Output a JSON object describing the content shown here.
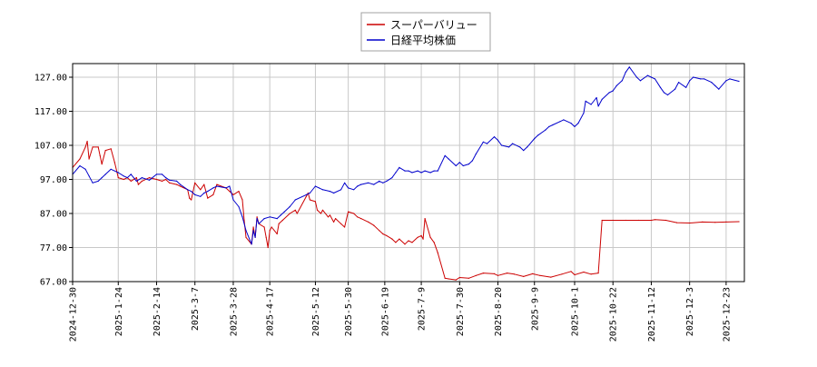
{
  "chart_data": {
    "type": "line",
    "title": "",
    "xlabel": "",
    "ylabel": "",
    "grid": true,
    "legend_position": "top-center",
    "ylim": [
      67,
      131
    ],
    "xlim": [
      "2024-12-30",
      "2026-01-02"
    ],
    "yticks": [
      67,
      77,
      87,
      97,
      107,
      117,
      127
    ],
    "ytick_labels": [
      "67.00",
      "77.00",
      "87.00",
      "97.00",
      "107.00",
      "117.00",
      "127.00"
    ],
    "xticks": [
      "2024-12-30",
      "2025-1-24",
      "2025-2-14",
      "2025-3-7",
      "2025-3-28",
      "2025-4-17",
      "2025-5-12",
      "2025-5-30",
      "2025-6-19",
      "2025-7-9",
      "2025-7-30",
      "2025-8-20",
      "2025-9-9",
      "2025-10-1",
      "2025-10-22",
      "2025-11-12",
      "2025-12-3",
      "2025-12-23"
    ],
    "series": [
      {
        "name": "スーパーバリュー",
        "color": "#cc0000",
        "points": [
          [
            "2024-12-30",
            100.5
          ],
          [
            "2025-1-3",
            103
          ],
          [
            "2025-1-6",
            106.5
          ],
          [
            "2025-1-7",
            108.2
          ],
          [
            "2025-1-8",
            103
          ],
          [
            "2025-1-10",
            106.5
          ],
          [
            "2025-1-13",
            106.5
          ],
          [
            "2025-1-14",
            104
          ],
          [
            "2025-1-15",
            101.5
          ],
          [
            "2025-1-17",
            105.5
          ],
          [
            "2025-1-20",
            106
          ],
          [
            "2025-1-22",
            102
          ],
          [
            "2025-1-24",
            97.5
          ],
          [
            "2025-1-27",
            97
          ],
          [
            "2025-1-29",
            97.5
          ],
          [
            "2025-1-31",
            96.5
          ],
          [
            "2025-2-3",
            97.5
          ],
          [
            "2025-2-4",
            95.5
          ],
          [
            "2025-2-6",
            96.5
          ],
          [
            "2025-2-10",
            97.5
          ],
          [
            "2025-2-14",
            97
          ],
          [
            "2025-2-17",
            96.5
          ],
          [
            "2025-2-19",
            97
          ],
          [
            "2025-2-21",
            96
          ],
          [
            "2025-2-25",
            95.5
          ],
          [
            "2025-2-27",
            95
          ],
          [
            "2025-3-3",
            94
          ],
          [
            "2025-3-4",
            91.5
          ],
          [
            "2025-3-5",
            91
          ],
          [
            "2025-3-7",
            96
          ],
          [
            "2025-3-10",
            94
          ],
          [
            "2025-3-12",
            95.5
          ],
          [
            "2025-3-14",
            91.5
          ],
          [
            "2025-3-17",
            92.5
          ],
          [
            "2025-3-19",
            95.5
          ],
          [
            "2025-3-24",
            94.5
          ],
          [
            "2025-3-26",
            93.5
          ],
          [
            "2025-3-28",
            92.5
          ],
          [
            "2025-3-31",
            93.5
          ],
          [
            "2025-4-2",
            91
          ],
          [
            "2025-4-3",
            85
          ],
          [
            "2025-4-4",
            80
          ],
          [
            "2025-4-7",
            78
          ],
          [
            "2025-4-8",
            83
          ],
          [
            "2025-4-9",
            80
          ],
          [
            "2025-4-10",
            86
          ],
          [
            "2025-4-11",
            84
          ],
          [
            "2025-4-14",
            83
          ],
          [
            "2025-4-15",
            80
          ],
          [
            "2025-4-16",
            77
          ],
          [
            "2025-4-17",
            82
          ],
          [
            "2025-4-18",
            83
          ],
          [
            "2025-4-21",
            81
          ],
          [
            "2025-4-22",
            84
          ],
          [
            "2025-4-24",
            85
          ],
          [
            "2025-4-28",
            87
          ],
          [
            "2025-5-1",
            88
          ],
          [
            "2025-5-2",
            87
          ],
          [
            "2025-5-7",
            92
          ],
          [
            "2025-5-8",
            93
          ],
          [
            "2025-5-9",
            91
          ],
          [
            "2025-5-12",
            90.5
          ],
          [
            "2025-5-13",
            88
          ],
          [
            "2025-5-15",
            87
          ],
          [
            "2025-5-16",
            88
          ],
          [
            "2025-5-19",
            86
          ],
          [
            "2025-5-20",
            86.5
          ],
          [
            "2025-5-22",
            84.5
          ],
          [
            "2025-5-23",
            85.5
          ],
          [
            "2025-5-26",
            84
          ],
          [
            "2025-5-28",
            83
          ],
          [
            "2025-5-30",
            87.5
          ],
          [
            "2025-6-2",
            87
          ],
          [
            "2025-6-4",
            86
          ],
          [
            "2025-6-6",
            85.5
          ],
          [
            "2025-6-10",
            84.5
          ],
          [
            "2025-6-13",
            83.5
          ],
          [
            "2025-6-16",
            82
          ],
          [
            "2025-6-18",
            81
          ],
          [
            "2025-6-20",
            80.5
          ],
          [
            "2025-6-23",
            79.5
          ],
          [
            "2025-6-25",
            78.5
          ],
          [
            "2025-6-27",
            79.5
          ],
          [
            "2025-6-30",
            78
          ],
          [
            "2025-7-2",
            79
          ],
          [
            "2025-7-4",
            78.5
          ],
          [
            "2025-7-7",
            80
          ],
          [
            "2025-7-9",
            80.5
          ],
          [
            "2025-7-10",
            79.5
          ],
          [
            "2025-7-11",
            85.5
          ],
          [
            "2025-7-14",
            80
          ],
          [
            "2025-7-16",
            78.5
          ],
          [
            "2025-7-18",
            75.5
          ],
          [
            "2025-7-22",
            68
          ],
          [
            "2025-7-24",
            67.8
          ],
          [
            "2025-7-28",
            67.5
          ],
          [
            "2025-7-30",
            68.2
          ],
          [
            "2025-8-4",
            68
          ],
          [
            "2025-8-8",
            68.8
          ],
          [
            "2025-8-12",
            69.5
          ],
          [
            "2025-8-18",
            69.3
          ],
          [
            "2025-8-20",
            68.8
          ],
          [
            "2025-8-25",
            69.5
          ],
          [
            "2025-8-29",
            69.2
          ],
          [
            "2025-9-3",
            68.5
          ],
          [
            "2025-9-8",
            69.3
          ],
          [
            "2025-9-12",
            68.8
          ],
          [
            "2025-9-18",
            68.3
          ],
          [
            "2025-9-24",
            69.2
          ],
          [
            "2025-9-29",
            70
          ],
          [
            "2025-10-1",
            69
          ],
          [
            "2025-10-6",
            69.8
          ],
          [
            "2025-10-10",
            69.2
          ],
          [
            "2025-10-14",
            69.5
          ],
          [
            "2025-10-16",
            85
          ],
          [
            "2025-10-22",
            85
          ],
          [
            "2025-10-29",
            85
          ],
          [
            "2025-11-5",
            85
          ],
          [
            "2025-11-12",
            85
          ],
          [
            "2025-11-14",
            85.2
          ],
          [
            "2025-11-20",
            85
          ],
          [
            "2025-11-26",
            84.3
          ],
          [
            "2025-12-3",
            84.2
          ],
          [
            "2025-12-10",
            84.5
          ],
          [
            "2025-12-17",
            84.4
          ],
          [
            "2025-12-23",
            84.5
          ],
          [
            "2025-12-30",
            84.6
          ]
        ]
      },
      {
        "name": "日経平均株価",
        "color": "#0000cc",
        "points": [
          [
            "2024-12-30",
            98.5
          ],
          [
            "2025-1-3",
            101
          ],
          [
            "2025-1-6",
            100
          ],
          [
            "2025-1-8",
            98
          ],
          [
            "2025-1-10",
            96
          ],
          [
            "2025-1-13",
            96.5
          ],
          [
            "2025-1-15",
            97.5
          ],
          [
            "2025-1-17",
            98.5
          ],
          [
            "2025-1-20",
            100
          ],
          [
            "2025-1-24",
            99
          ],
          [
            "2025-1-27",
            98
          ],
          [
            "2025-1-29",
            97.5
          ],
          [
            "2025-1-31",
            98.5
          ],
          [
            "2025-2-3",
            96.5
          ],
          [
            "2025-2-6",
            97.5
          ],
          [
            "2025-2-10",
            96.8
          ],
          [
            "2025-2-14",
            98.5
          ],
          [
            "2025-2-17",
            98.5
          ],
          [
            "2025-2-19",
            97.5
          ],
          [
            "2025-2-21",
            96.8
          ],
          [
            "2025-2-25",
            96.5
          ],
          [
            "2025-2-27",
            95.5
          ],
          [
            "2025-3-3",
            94
          ],
          [
            "2025-3-5",
            93.5
          ],
          [
            "2025-3-7",
            92.5
          ],
          [
            "2025-3-10",
            92
          ],
          [
            "2025-3-12",
            93
          ],
          [
            "2025-3-14",
            93.5
          ],
          [
            "2025-3-17",
            94.5
          ],
          [
            "2025-3-19",
            95
          ],
          [
            "2025-3-24",
            94.5
          ],
          [
            "2025-3-26",
            95
          ],
          [
            "2025-3-28",
            91
          ],
          [
            "2025-3-31",
            89
          ],
          [
            "2025-4-2",
            86
          ],
          [
            "2025-4-4",
            82
          ],
          [
            "2025-4-7",
            78
          ],
          [
            "2025-4-8",
            82
          ],
          [
            "2025-4-9",
            80
          ],
          [
            "2025-4-10",
            85.5
          ],
          [
            "2025-4-11",
            84
          ],
          [
            "2025-4-14",
            85.5
          ],
          [
            "2025-4-17",
            86
          ],
          [
            "2025-4-21",
            85.5
          ],
          [
            "2025-4-23",
            86.5
          ],
          [
            "2025-4-25",
            87.5
          ],
          [
            "2025-4-28",
            89
          ],
          [
            "2025-5-1",
            91
          ],
          [
            "2025-5-7",
            92.5
          ],
          [
            "2025-5-9",
            93
          ],
          [
            "2025-5-12",
            95
          ],
          [
            "2025-5-14",
            94.5
          ],
          [
            "2025-5-16",
            94
          ],
          [
            "2025-5-20",
            93.5
          ],
          [
            "2025-5-22",
            93
          ],
          [
            "2025-5-26",
            94
          ],
          [
            "2025-5-28",
            96
          ],
          [
            "2025-5-30",
            94.5
          ],
          [
            "2025-6-2",
            94
          ],
          [
            "2025-6-4",
            95
          ],
          [
            "2025-6-6",
            95.5
          ],
          [
            "2025-6-10",
            96
          ],
          [
            "2025-6-13",
            95.5
          ],
          [
            "2025-6-16",
            96.5
          ],
          [
            "2025-6-18",
            96
          ],
          [
            "2025-6-20",
            96.5
          ],
          [
            "2025-6-23",
            97.5
          ],
          [
            "2025-6-25",
            99
          ],
          [
            "2025-6-27",
            100.5
          ],
          [
            "2025-6-30",
            99.5
          ],
          [
            "2025-7-2",
            99.5
          ],
          [
            "2025-7-4",
            99
          ],
          [
            "2025-7-7",
            99.5
          ],
          [
            "2025-7-9",
            99
          ],
          [
            "2025-7-11",
            99.5
          ],
          [
            "2025-7-14",
            99
          ],
          [
            "2025-7-16",
            99.5
          ],
          [
            "2025-7-18",
            99.5
          ],
          [
            "2025-7-22",
            104
          ],
          [
            "2025-7-24",
            103
          ],
          [
            "2025-7-28",
            101
          ],
          [
            "2025-7-30",
            102
          ],
          [
            "2025-8-1",
            101
          ],
          [
            "2025-8-4",
            101.5
          ],
          [
            "2025-8-6",
            102.5
          ],
          [
            "2025-8-8",
            104.5
          ],
          [
            "2025-8-12",
            108
          ],
          [
            "2025-8-14",
            107.5
          ],
          [
            "2025-8-18",
            109.5
          ],
          [
            "2025-8-20",
            108.5
          ],
          [
            "2025-8-22",
            107
          ],
          [
            "2025-8-26",
            106.5
          ],
          [
            "2025-8-28",
            107.5
          ],
          [
            "2025-9-1",
            106.5
          ],
          [
            "2025-9-3",
            105.5
          ],
          [
            "2025-9-5",
            106.5
          ],
          [
            "2025-9-9",
            109
          ],
          [
            "2025-9-11",
            110
          ],
          [
            "2025-9-15",
            111.5
          ],
          [
            "2025-9-17",
            112.5
          ],
          [
            "2025-9-19",
            113
          ],
          [
            "2025-9-23",
            114
          ],
          [
            "2025-9-25",
            114.5
          ],
          [
            "2025-9-29",
            113.5
          ],
          [
            "2025-10-1",
            112.5
          ],
          [
            "2025-10-3",
            113.5
          ],
          [
            "2025-10-6",
            116.5
          ],
          [
            "2025-10-7",
            120
          ],
          [
            "2025-10-10",
            119
          ],
          [
            "2025-10-13",
            121
          ],
          [
            "2025-10-14",
            118.5
          ],
          [
            "2025-10-16",
            120.5
          ],
          [
            "2025-10-20",
            122.5
          ],
          [
            "2025-10-22",
            123
          ],
          [
            "2025-10-24",
            124.5
          ],
          [
            "2025-10-27",
            126
          ],
          [
            "2025-10-29",
            128.5
          ],
          [
            "2025-10-31",
            130
          ],
          [
            "2025-11-4",
            127
          ],
          [
            "2025-11-6",
            126
          ],
          [
            "2025-11-10",
            127.5
          ],
          [
            "2025-11-12",
            127
          ],
          [
            "2025-11-14",
            126.5
          ],
          [
            "2025-11-17",
            124
          ],
          [
            "2025-11-19",
            122.5
          ],
          [
            "2025-11-21",
            121.8
          ],
          [
            "2025-11-25",
            123.5
          ],
          [
            "2025-11-27",
            125.5
          ],
          [
            "2025-12-1",
            124
          ],
          [
            "2025-12-3",
            126
          ],
          [
            "2025-12-5",
            127
          ],
          [
            "2025-12-9",
            126.5
          ],
          [
            "2025-12-11",
            126.5
          ],
          [
            "2025-12-15",
            125.5
          ],
          [
            "2025-12-17",
            124.5
          ],
          [
            "2025-12-19",
            123.5
          ],
          [
            "2025-12-23",
            126
          ],
          [
            "2025-12-25",
            126.5
          ],
          [
            "2025-12-30",
            125.8
          ]
        ]
      }
    ]
  }
}
